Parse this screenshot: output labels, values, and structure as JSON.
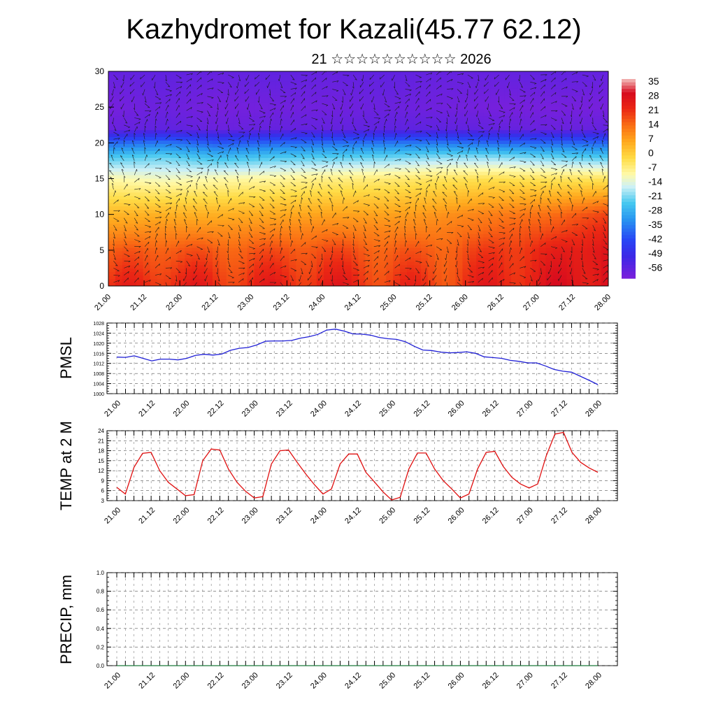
{
  "header": {
    "title": "Kazhydromet for Kazali(45.77 62.12)",
    "subtitle": "21 ☆☆☆☆☆☆☆☆☆☆ 2026"
  },
  "time_ticks": [
    "21.00",
    "21.12",
    "22.00",
    "22.12",
    "23.00",
    "23.12",
    "24.00",
    "24.12",
    "25.00",
    "25.12",
    "26.00",
    "26.12",
    "27.00",
    "27.12",
    "28.00"
  ],
  "colorbar": {
    "labels": [
      "35",
      "28",
      "21",
      "14",
      "7",
      "0",
      "-7",
      "-14",
      "-21",
      "-28",
      "-35",
      "-42",
      "-49",
      "-56"
    ]
  },
  "chart_data": [
    {
      "type": "heatmap",
      "name": "temperature-wind-cross-section",
      "ylim": [
        0,
        30
      ],
      "yticks": [
        "0",
        "5",
        "10",
        "15",
        "20",
        "25",
        "30"
      ],
      "x_ticks_ref": "time_ticks",
      "level_axis": [
        0,
        5,
        10,
        15,
        18,
        20,
        22,
        25,
        30
      ],
      "values_by_level": [
        [
          20,
          24,
          22,
          23,
          24,
          21,
          20,
          24,
          26,
          30
        ],
        [
          15,
          17,
          16,
          17,
          18,
          16,
          16,
          20,
          23,
          28
        ],
        [
          4,
          5,
          5,
          6,
          7,
          7,
          9,
          12,
          14,
          19
        ],
        [
          -10,
          -12,
          -10,
          -9,
          -7,
          -6,
          -4,
          -3,
          -4,
          -4
        ],
        [
          -24,
          -22,
          -26,
          -24,
          -23,
          -22,
          -20,
          -20,
          -22,
          -24
        ],
        [
          -38,
          -36,
          -40,
          -38,
          -37,
          -36,
          -36,
          -38,
          -38,
          -38
        ],
        [
          -58,
          -56,
          -58,
          -57,
          -57,
          -56,
          -56,
          -57,
          -58,
          -57
        ],
        [
          -60,
          -58,
          -60,
          -59,
          -59,
          -58,
          -59,
          -60,
          -60,
          -60
        ],
        [
          -57,
          -56,
          -57,
          -56,
          -57,
          -56,
          -57,
          -57,
          -56,
          -57
        ]
      ]
    },
    {
      "type": "line",
      "name": "PMSL",
      "ylabel": "PMSL",
      "ylim": [
        1000,
        1028
      ],
      "yticks": [
        "1000",
        "1004",
        "1008",
        "1012",
        "1016",
        "1020",
        "1024",
        "1028"
      ],
      "x_ticks_ref": "time_ticks",
      "color": "#1f1fd6",
      "values": [
        1014.5,
        1014.4,
        1015,
        1014,
        1013,
        1013.7,
        1013.7,
        1013.4,
        1014,
        1015.2,
        1015.6,
        1015.3,
        1015.7,
        1017.2,
        1018,
        1018.3,
        1019.3,
        1020.8,
        1020.9,
        1020.9,
        1021.1,
        1022,
        1022.6,
        1023.5,
        1025.2,
        1025.6,
        1024.8,
        1023.7,
        1023.6,
        1023.2,
        1022.3,
        1021.8,
        1021.5,
        1020.6,
        1018.8,
        1017.3,
        1017.1,
        1016.5,
        1016.2,
        1016.3,
        1016.6,
        1016,
        1014.6,
        1014.3,
        1014,
        1013.2,
        1012.8,
        1012.2,
        1012.2,
        1011,
        1009.6,
        1008.9,
        1008.5,
        1006.9,
        1005.3,
        1003.6
      ]
    },
    {
      "type": "line",
      "name": "TEMP at 2 M",
      "ylabel": "TEMP at 2 M",
      "ylim": [
        3,
        24
      ],
      "yticks": [
        "3",
        "6",
        "9",
        "12",
        "15",
        "18",
        "21",
        "24"
      ],
      "x_ticks_ref": "time_ticks",
      "color": "#e01010",
      "values": [
        7,
        5,
        13,
        17.2,
        17.5,
        12,
        8.5,
        6.5,
        4.5,
        4.8,
        15,
        18.5,
        18.2,
        12.5,
        8.5,
        5.8,
        3.8,
        4.2,
        14,
        18,
        18.2,
        14.5,
        11,
        7.8,
        5,
        6.5,
        14,
        17,
        17,
        11.5,
        8.6,
        5.6,
        3.2,
        4,
        12.5,
        17.3,
        17.3,
        12.5,
        9,
        6.5,
        3.8,
        5,
        12.5,
        17.5,
        17.8,
        13.2,
        10,
        8,
        6.8,
        8,
        16.5,
        23,
        23.5,
        17.5,
        14.5,
        12.8,
        11.5
      ]
    },
    {
      "type": "line",
      "name": "PRECIP, mm",
      "ylabel": "PRECIP, mm",
      "ylim": [
        0,
        1
      ],
      "yticks": [
        "0.0",
        "0.2",
        "0.4",
        "0.6",
        "0.8",
        "1.0"
      ],
      "x_ticks_ref": "time_ticks",
      "color": "#1a7a3a",
      "values": [
        0,
        0,
        0,
        0,
        0,
        0,
        0,
        0,
        0,
        0,
        0,
        0,
        0,
        0,
        0,
        0,
        0,
        0,
        0,
        0,
        0,
        0,
        0,
        0,
        0,
        0,
        0,
        0,
        0,
        0,
        0,
        0,
        0,
        0,
        0,
        0,
        0,
        0,
        0,
        0,
        0,
        0,
        0,
        0,
        0,
        0,
        0,
        0,
        0,
        0,
        0,
        0,
        0,
        0,
        0,
        0,
        0
      ]
    }
  ]
}
